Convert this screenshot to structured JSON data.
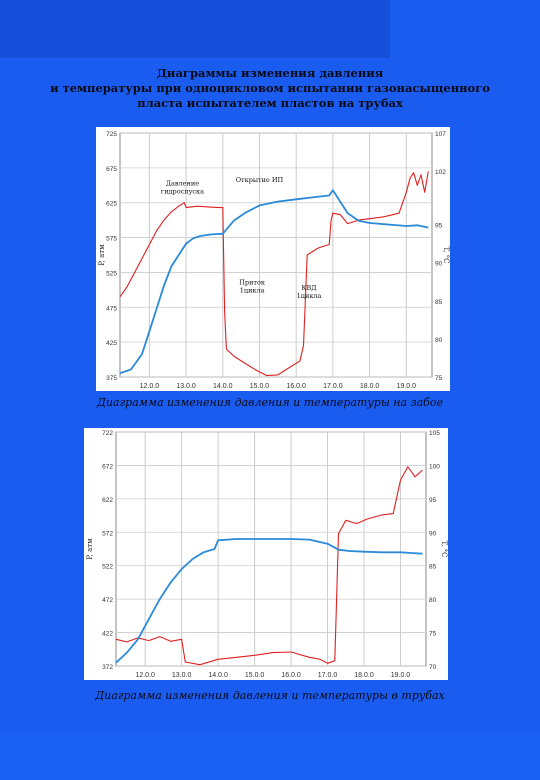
{
  "title_lines": [
    "Диаграммы изменения давления",
    "и температуры при одноцикловом испытании газонасыщенного",
    "пласта испытателем пластов на трубах"
  ],
  "colors": {
    "background": "#1a5cf0",
    "pressure_line": "#e02020",
    "temperature_line": "#2a8ad8",
    "grid": "#cccccc"
  },
  "chart_data": [
    {
      "type": "line",
      "caption": "Диаграмма изменения давления и температуры на забое",
      "xlim": [
        11.2,
        19.7
      ],
      "x_ticks": [
        "12.0.0",
        "13.0.0",
        "14.0.0",
        "15.0.0",
        "16.0.0",
        "17.0.0",
        "18.0.0",
        "19.0.0"
      ],
      "x_tick_values": [
        12,
        13,
        14,
        15,
        16,
        17,
        18,
        19
      ],
      "ylabel": "P, атм",
      "ylim": [
        375,
        725
      ],
      "y_ticks": [
        375,
        425,
        475,
        525,
        575,
        625,
        675,
        725
      ],
      "y2label": "T, °C",
      "y2lim": [
        75,
        107
      ],
      "y2_ticks": [
        75,
        80,
        85,
        90,
        95,
        102,
        107
      ],
      "annotations": [
        "Давление гидроспуска",
        "Открытие ИП",
        "Приток 1цикла",
        "КВД 1цикла"
      ],
      "series": [
        {
          "role": "pressure",
          "x": [
            11.2,
            11.4,
            11.6,
            11.8,
            12.0,
            12.2,
            12.4,
            12.6,
            12.8,
            12.95,
            13.0,
            13.3,
            13.6,
            13.9,
            14.0,
            14.05,
            14.1,
            14.3,
            14.6,
            14.9,
            15.2,
            15.5,
            15.8,
            16.1,
            16.2,
            16.3,
            16.6,
            16.9,
            16.95,
            17.0,
            17.2,
            17.4,
            17.7,
            18.0,
            18.4,
            18.8,
            19.0,
            19.1,
            19.2,
            19.3,
            19.4,
            19.5,
            19.6
          ],
          "y": [
            490,
            505,
            525,
            545,
            565,
            585,
            600,
            612,
            620,
            625,
            618,
            620,
            619,
            618,
            618,
            470,
            415,
            405,
            395,
            385,
            377,
            378,
            388,
            398,
            420,
            550,
            560,
            565,
            600,
            610,
            608,
            595,
            600,
            602,
            605,
            610,
            640,
            660,
            668,
            650,
            665,
            640,
            670
          ]
        },
        {
          "role": "temperature",
          "x": [
            11.2,
            11.5,
            11.8,
            12.0,
            12.2,
            12.4,
            12.6,
            12.8,
            13.0,
            13.2,
            13.4,
            13.7,
            14.0,
            14.3,
            14.6,
            15.0,
            15.5,
            16.0,
            16.5,
            16.9,
            17.0,
            17.2,
            17.4,
            17.7,
            18.0,
            18.5,
            19.0,
            19.3,
            19.6
          ],
          "y": [
            75.5,
            76,
            78,
            81,
            84,
            87,
            89.5,
            91,
            92.5,
            93.2,
            93.5,
            93.7,
            93.8,
            95.5,
            96.5,
            97.5,
            98,
            98.3,
            98.6,
            98.8,
            99.5,
            98,
            96.5,
            95.5,
            95.2,
            95,
            94.8,
            94.9,
            94.6
          ]
        }
      ]
    },
    {
      "type": "line",
      "caption": "Диаграмма изменения давления и температуры в трубах",
      "xlim": [
        11.2,
        19.7
      ],
      "x_ticks": [
        "12.0.0",
        "13.0.0",
        "14.0.0",
        "15.0.0",
        "16.0.0",
        "17.0.0",
        "18.0.0",
        "19.0.0"
      ],
      "x_tick_values": [
        12,
        13,
        14,
        15,
        16,
        17,
        18,
        19
      ],
      "ylabel": "P, атм",
      "ylim": [
        372,
        722
      ],
      "y_ticks": [
        372,
        422,
        472,
        522,
        572,
        622,
        672,
        722
      ],
      "y2label": "T, °C",
      "y2lim": [
        70,
        105
      ],
      "y2_ticks": [
        70,
        75,
        80,
        85,
        90,
        95,
        100,
        105
      ],
      "annotations": [],
      "series": [
        {
          "role": "pressure",
          "x": [
            11.2,
            11.5,
            11.8,
            12.1,
            12.4,
            12.7,
            13.0,
            13.1,
            13.5,
            14.0,
            14.5,
            15.0,
            15.5,
            16.0,
            16.5,
            16.8,
            17.0,
            17.2,
            17.3,
            17.5,
            17.8,
            18.1,
            18.5,
            18.8,
            19.0,
            19.2,
            19.4,
            19.6
          ],
          "y": [
            412,
            408,
            414,
            410,
            416,
            409,
            412,
            378,
            374,
            382,
            385,
            388,
            392,
            393,
            385,
            382,
            376,
            380,
            570,
            590,
            585,
            592,
            598,
            600,
            650,
            670,
            655,
            665
          ]
        },
        {
          "role": "temperature",
          "x": [
            11.2,
            11.5,
            11.8,
            12.1,
            12.4,
            12.7,
            13.0,
            13.3,
            13.6,
            13.9,
            14.0,
            14.5,
            15.0,
            15.5,
            16.0,
            16.5,
            17.0,
            17.3,
            17.6,
            18.0,
            18.5,
            19.0,
            19.3,
            19.6
          ],
          "y": [
            70.5,
            72,
            74,
            77,
            80,
            82.5,
            84.5,
            86,
            87,
            87.5,
            88.8,
            89,
            89,
            89,
            89,
            88.9,
            88.3,
            87.4,
            87.2,
            87.1,
            87,
            87,
            86.9,
            86.8
          ]
        }
      ]
    }
  ]
}
